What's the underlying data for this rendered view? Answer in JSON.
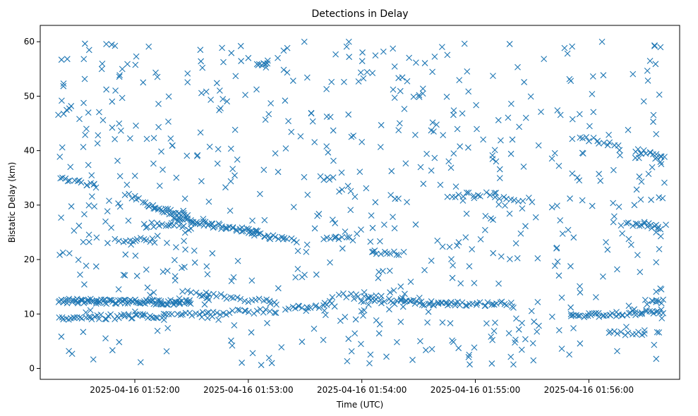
{
  "chart_data": {
    "type": "scatter",
    "title": "Detections in Delay",
    "xlabel": "Time (UTC)",
    "ylabel": "Bistatic Delay (km)",
    "x_axis_type": "datetime",
    "xlim": [
      "2025-04-16 01:51:10",
      "2025-04-16 01:56:48"
    ],
    "ylim": [
      -2,
      63
    ],
    "x_ticks": [
      "2025-04-16 01:52:00",
      "2025-04-16 01:53:00",
      "2025-04-16 01:54:00",
      "2025-04-16 01:55:00",
      "2025-04-16 01:56:00"
    ],
    "y_ticks": [
      0,
      10,
      20,
      30,
      40,
      50,
      60
    ],
    "grid": false,
    "legend": "none",
    "marker": "x",
    "color": "#1f77b4",
    "time_range": [
      "2025-04-16 01:51:20",
      "2025-04-16 01:56:40"
    ],
    "tracks": [
      {
        "t": [
          "2025-04-16 01:51:20",
          "2025-04-16 01:52:30"
        ],
        "y": [
          12.4,
          12.1
        ],
        "count": 100
      },
      {
        "t": [
          "2025-04-16 01:51:20",
          "2025-04-16 01:52:15"
        ],
        "y": [
          9.3,
          9.7
        ],
        "count": 45
      },
      {
        "t": [
          "2025-04-16 01:52:15",
          "2025-04-16 01:53:15"
        ],
        "y": [
          10.0,
          10.6
        ],
        "count": 35
      },
      {
        "t": [
          "2025-04-16 01:52:30",
          "2025-04-16 01:53:15"
        ],
        "y": [
          14.0,
          12.0
        ],
        "count": 25
      },
      {
        "t": [
          "2025-04-16 01:53:20",
          "2025-04-16 01:53:45"
        ],
        "y": [
          11.0,
          11.8
        ],
        "count": 18
      },
      {
        "t": [
          "2025-04-16 01:53:45",
          "2025-04-16 01:54:10"
        ],
        "y": [
          13.5,
          13.0
        ],
        "count": 12
      },
      {
        "t": [
          "2025-04-16 01:54:00",
          "2025-04-16 01:54:20"
        ],
        "y": [
          12.4,
          12.4
        ],
        "count": 14
      },
      {
        "t": [
          "2025-04-16 01:54:20",
          "2025-04-16 01:54:50"
        ],
        "y": [
          12.2,
          11.8
        ],
        "count": 30
      },
      {
        "t": [
          "2025-04-16 01:54:50",
          "2025-04-16 01:55:20"
        ],
        "y": [
          12.0,
          11.8
        ],
        "count": 22
      },
      {
        "t": [
          "2025-04-16 01:55:50",
          "2025-04-16 01:56:40"
        ],
        "y": [
          9.5,
          10.5
        ],
        "count": 45
      },
      {
        "t": [
          "2025-04-16 01:56:30",
          "2025-04-16 01:56:40"
        ],
        "y": [
          12.2,
          12.2
        ],
        "count": 8
      },
      {
        "t": [
          "2025-04-16 01:56:10",
          "2025-04-16 01:56:30"
        ],
        "y": [
          6.5,
          6.5
        ],
        "count": 12
      },
      {
        "t": [
          "2025-04-16 01:51:20",
          "2025-04-16 01:51:40"
        ],
        "y": [
          35.0,
          33.5
        ],
        "count": 14
      },
      {
        "t": [
          "2025-04-16 01:51:55",
          "2025-04-16 01:52:20"
        ],
        "y": [
          32.0,
          28.0
        ],
        "count": 18
      },
      {
        "t": [
          "2025-04-16 01:52:20",
          "2025-04-16 01:53:05"
        ],
        "y": [
          27.5,
          25.0
        ],
        "count": 50
      },
      {
        "t": [
          "2025-04-16 01:53:00",
          "2025-04-16 01:53:25"
        ],
        "y": [
          25.0,
          23.5
        ],
        "count": 20
      },
      {
        "t": [
          "2025-04-16 01:51:50",
          "2025-04-16 01:52:10"
        ],
        "y": [
          23.6,
          23.6
        ],
        "count": 12
      },
      {
        "t": [
          "2025-04-16 01:52:05",
          "2025-04-16 01:52:30"
        ],
        "y": [
          26.5,
          25.8
        ],
        "count": 15
      },
      {
        "t": [
          "2025-04-16 01:52:10",
          "2025-04-16 01:52:28"
        ],
        "y": [
          29.5,
          28.5
        ],
        "count": 14
      },
      {
        "t": [
          "2025-04-16 01:53:40",
          "2025-04-16 01:53:55"
        ],
        "y": [
          23.8,
          23.8
        ],
        "count": 10
      },
      {
        "t": [
          "2025-04-16 01:54:05",
          "2025-04-16 01:54:20"
        ],
        "y": [
          21.4,
          21.2
        ],
        "count": 10
      },
      {
        "t": [
          "2025-04-16 01:54:45",
          "2025-04-16 01:55:10"
        ],
        "y": [
          31.8,
          32.0
        ],
        "count": 12
      },
      {
        "t": [
          "2025-04-16 01:55:10",
          "2025-04-16 01:55:30"
        ],
        "y": [
          31.2,
          31.0
        ],
        "count": 10
      },
      {
        "t": [
          "2025-04-16 01:53:05",
          "2025-04-16 01:53:10"
        ],
        "y": [
          55.5,
          55.7
        ],
        "count": 8
      },
      {
        "t": [
          "2025-04-16 01:56:25",
          "2025-04-16 01:56:40"
        ],
        "y": [
          40.0,
          38.8
        ],
        "count": 14
      },
      {
        "t": [
          "2025-04-16 01:55:55",
          "2025-04-16 01:56:15"
        ],
        "y": [
          42.5,
          41.0
        ],
        "count": 12
      },
      {
        "t": [
          "2025-04-16 01:56:20",
          "2025-04-16 01:56:35"
        ],
        "y": [
          26.5,
          26.0
        ],
        "count": 12
      },
      {
        "t": [
          "2025-04-16 01:56:35",
          "2025-04-16 01:56:40"
        ],
        "y": [
          26.0,
          26.0
        ],
        "count": 4
      },
      {
        "t": [
          "2025-04-16 01:51:20",
          "2025-04-16 01:51:25"
        ],
        "y": [
          46.5,
          47.5
        ],
        "count": 4
      },
      {
        "t": [
          "2025-04-16 01:51:20",
          "2025-04-16 01:51:25"
        ],
        "y": [
          21.0,
          21.0
        ],
        "count": 3
      },
      {
        "t": [
          "2025-04-16 01:54:00",
          "2025-04-16 01:54:05"
        ],
        "y": [
          54.6,
          54.6
        ],
        "count": 3
      },
      {
        "t": [
          "2025-04-16 01:53:40",
          "2025-04-16 01:53:45"
        ],
        "y": [
          34.8,
          34.8
        ],
        "count": 3
      }
    ],
    "clutter_points": 650,
    "clutter_ylim": [
      0.5,
      60
    ]
  }
}
